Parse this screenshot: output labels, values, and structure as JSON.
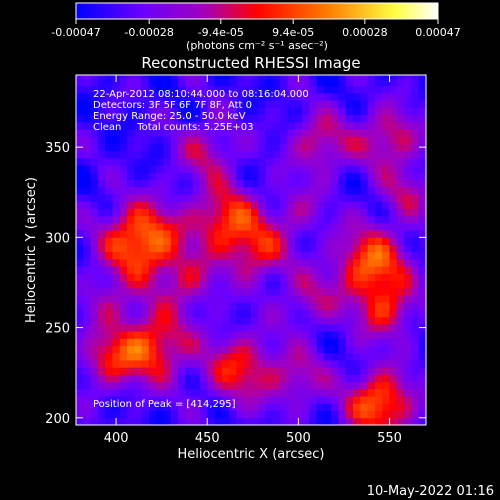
{
  "chart_data": {
    "type": "heatmap",
    "title": "Reconstructed RHESSI Image",
    "xlabel": "Heliocentric X (arcsec)",
    "ylabel": "Heliocentric Y (arcsec)",
    "xlim": [
      378,
      570
    ],
    "ylim": [
      196,
      390
    ],
    "x_ticks": [
      400,
      450,
      500,
      550
    ],
    "y_ticks": [
      200,
      250,
      300,
      350
    ],
    "colorbar": {
      "min": -0.00047,
      "max": 0.00047,
      "tick_values": [
        -0.00047,
        -0.00028,
        -9.4e-05,
        9.4e-05,
        0.00028,
        0.00047
      ],
      "tick_labels": [
        "-0.00047",
        "-0.00028",
        "-9.4e-05",
        "9.4e-05",
        "0.00028",
        "0.00047"
      ],
      "unit_label": "(photons cm⁻² s⁻¹ asec⁻²)",
      "colormap": [
        "#0000ff",
        "#7000ff",
        "#b000b0",
        "#ff0000",
        "#ff8000",
        "#ffff40",
        "#ffffff"
      ]
    },
    "grid": false,
    "annotations": {
      "time": "22-Apr-2012 08:10:44.000 to 08:16:04.000",
      "detectors": "Detectors: 3F 5F 6F 7F 8F, Att 0",
      "energy": "Energy Range: 25.0 - 50.0 keV",
      "clean": "Clean     Total counts: 5.25E+03",
      "peak": "Position of Peak = [414,295]"
    },
    "peak_position": [
      414,
      295
    ],
    "blobs": [
      {
        "x": 414,
        "y": 298,
        "amp": 1.0,
        "r": 15
      },
      {
        "x": 460,
        "y": 310,
        "amp": 0.75,
        "r": 13
      },
      {
        "x": 478,
        "y": 292,
        "amp": 0.6,
        "r": 12
      },
      {
        "x": 540,
        "y": 285,
        "amp": 0.85,
        "r": 15
      },
      {
        "x": 548,
        "y": 258,
        "amp": 0.55,
        "r": 11
      },
      {
        "x": 420,
        "y": 240,
        "amp": 0.8,
        "r": 14
      },
      {
        "x": 395,
        "y": 232,
        "amp": 0.55,
        "r": 11
      },
      {
        "x": 468,
        "y": 228,
        "amp": 0.65,
        "r": 14
      },
      {
        "x": 500,
        "y": 222,
        "amp": 0.45,
        "r": 11
      },
      {
        "x": 545,
        "y": 208,
        "amp": 0.9,
        "r": 13
      },
      {
        "x": 512,
        "y": 352,
        "amp": 0.55,
        "r": 12
      },
      {
        "x": 550,
        "y": 355,
        "amp": 0.6,
        "r": 12
      },
      {
        "x": 450,
        "y": 348,
        "amp": 0.45,
        "r": 12
      },
      {
        "x": 440,
        "y": 275,
        "amp": 0.45,
        "r": 11
      },
      {
        "x": 505,
        "y": 265,
        "amp": 0.4,
        "r": 11
      },
      {
        "x": 560,
        "y": 325,
        "amp": 0.4,
        "r": 10
      },
      {
        "x": 395,
        "y": 265,
        "amp": 0.35,
        "r": 10
      },
      {
        "x": 500,
        "y": 315,
        "amp": 0.35,
        "r": 10
      }
    ]
  },
  "footer": {
    "timestamp": "10-May-2022 01:16"
  }
}
